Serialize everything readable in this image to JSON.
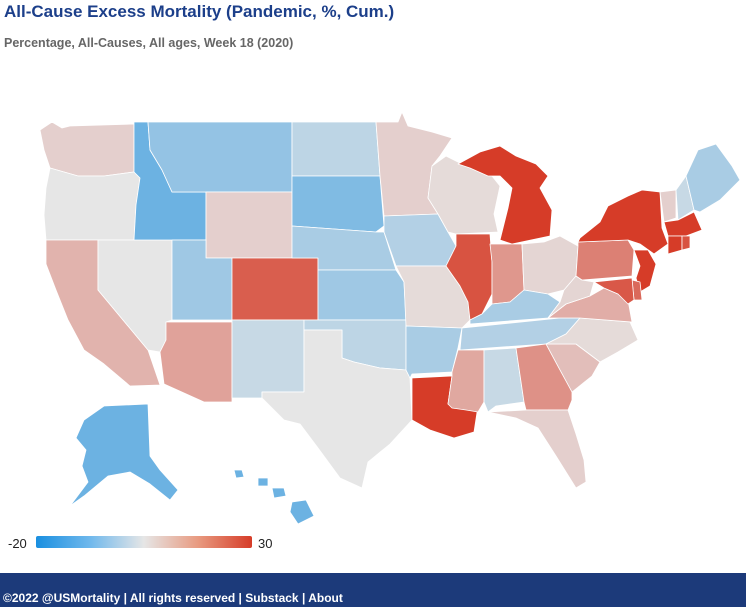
{
  "title": "All-Cause Excess Mortality (Pandemic, %, Cum.)",
  "subtitle": "Percentage, All-Causes, All ages, Week 18 (2020)",
  "legend": {
    "min": "-20",
    "max": "30"
  },
  "colors": {
    "background": "#ffffff",
    "title": "#1c3f8a",
    "footer": "#1c3a7a",
    "scale_low": "#1a8fe0",
    "scale_mid": "#e6e6e6",
    "scale_high": "#d63c28"
  },
  "states": [
    {
      "id": "WA",
      "value": 4
    },
    {
      "id": "OR",
      "value": 0
    },
    {
      "id": "CA",
      "value": 9
    },
    {
      "id": "NV",
      "value": 0
    },
    {
      "id": "ID",
      "value": -12
    },
    {
      "id": "MT",
      "value": -8
    },
    {
      "id": "WY",
      "value": 4
    },
    {
      "id": "UT",
      "value": -7
    },
    {
      "id": "AZ",
      "value": 12
    },
    {
      "id": "CO",
      "value": 24
    },
    {
      "id": "NM",
      "value": -3
    },
    {
      "id": "ND",
      "value": -4
    },
    {
      "id": "SD",
      "value": -10
    },
    {
      "id": "NE",
      "value": -6
    },
    {
      "id": "KS",
      "value": -7
    },
    {
      "id": "OK",
      "value": -4
    },
    {
      "id": "TX",
      "value": 0
    },
    {
      "id": "MN",
      "value": 4
    },
    {
      "id": "IA",
      "value": -5
    },
    {
      "id": "MO",
      "value": 2
    },
    {
      "id": "AR",
      "value": -6
    },
    {
      "id": "LA",
      "value": 30
    },
    {
      "id": "WI",
      "value": 2
    },
    {
      "id": "IL",
      "value": 26
    },
    {
      "id": "MI",
      "value": 30
    },
    {
      "id": "IN",
      "value": 14
    },
    {
      "id": "OH",
      "value": 3
    },
    {
      "id": "KY",
      "value": -6
    },
    {
      "id": "TN",
      "value": -5
    },
    {
      "id": "MS",
      "value": 11
    },
    {
      "id": "AL",
      "value": -3
    },
    {
      "id": "GA",
      "value": 15
    },
    {
      "id": "FL",
      "value": 4
    },
    {
      "id": "SC",
      "value": 7
    },
    {
      "id": "NC",
      "value": 2
    },
    {
      "id": "VA",
      "value": 10
    },
    {
      "id": "WV",
      "value": 3
    },
    {
      "id": "PA",
      "value": 18
    },
    {
      "id": "NY",
      "value": 30
    },
    {
      "id": "VT",
      "value": 4
    },
    {
      "id": "NH",
      "value": -3
    },
    {
      "id": "ME",
      "value": -6
    },
    {
      "id": "MA",
      "value": 30
    },
    {
      "id": "CT",
      "value": 30
    },
    {
      "id": "RI",
      "value": 26
    },
    {
      "id": "NJ",
      "value": 30
    },
    {
      "id": "DE",
      "value": 22
    },
    {
      "id": "MD",
      "value": 25
    },
    {
      "id": "AK",
      "value": -12
    },
    {
      "id": "HI",
      "value": -12
    }
  ],
  "footer": {
    "copyright": "©2022 @USMortality",
    "rights": "All rights reserved",
    "link1": "Substack",
    "link2": "About",
    "sep": " | "
  }
}
